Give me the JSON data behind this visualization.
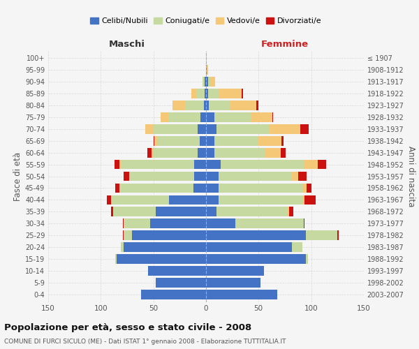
{
  "age_groups": [
    "0-4",
    "5-9",
    "10-14",
    "15-19",
    "20-24",
    "25-29",
    "30-34",
    "35-39",
    "40-44",
    "45-49",
    "50-54",
    "55-59",
    "60-64",
    "65-69",
    "70-74",
    "75-79",
    "80-84",
    "85-89",
    "90-94",
    "95-99",
    "100+"
  ],
  "birth_years": [
    "2003-2007",
    "1998-2002",
    "1993-1997",
    "1988-1992",
    "1983-1987",
    "1978-1982",
    "1973-1977",
    "1968-1972",
    "1963-1967",
    "1958-1962",
    "1953-1957",
    "1948-1952",
    "1943-1947",
    "1938-1942",
    "1933-1937",
    "1928-1932",
    "1923-1927",
    "1918-1922",
    "1913-1917",
    "1908-1912",
    "≤ 1907"
  ],
  "male": {
    "celibe": [
      62,
      48,
      55,
      85,
      78,
      70,
      53,
      48,
      35,
      12,
      11,
      11,
      8,
      6,
      8,
      5,
      2,
      1,
      1,
      0,
      0
    ],
    "coniugato": [
      0,
      0,
      0,
      1,
      3,
      8,
      25,
      40,
      55,
      70,
      62,
      70,
      42,
      40,
      42,
      30,
      18,
      8,
      2,
      0,
      0
    ],
    "vedovo": [
      0,
      0,
      0,
      0,
      0,
      0,
      0,
      0,
      0,
      0,
      0,
      1,
      2,
      3,
      8,
      8,
      12,
      5,
      0,
      0,
      0
    ],
    "divorziato": [
      0,
      0,
      0,
      0,
      0,
      1,
      1,
      2,
      4,
      4,
      5,
      5,
      4,
      1,
      0,
      0,
      0,
      0,
      0,
      0,
      0
    ]
  },
  "female": {
    "nubile": [
      68,
      52,
      55,
      95,
      82,
      95,
      28,
      10,
      12,
      12,
      12,
      14,
      8,
      8,
      10,
      8,
      3,
      2,
      2,
      1,
      0
    ],
    "coniugata": [
      0,
      0,
      0,
      2,
      10,
      30,
      65,
      68,
      80,
      80,
      70,
      80,
      48,
      42,
      50,
      35,
      20,
      10,
      2,
      0,
      0
    ],
    "vedova": [
      0,
      0,
      0,
      0,
      0,
      0,
      0,
      1,
      2,
      4,
      6,
      12,
      15,
      22,
      30,
      20,
      25,
      22,
      5,
      1,
      1
    ],
    "divorziata": [
      0,
      0,
      0,
      0,
      0,
      1,
      1,
      4,
      10,
      4,
      8,
      8,
      5,
      2,
      8,
      1,
      2,
      1,
      0,
      0,
      0
    ]
  },
  "colors": {
    "celibe_nubile": "#4472c4",
    "coniugato_coniugata": "#c5d9a0",
    "vedovo_vedova": "#f5c878",
    "divorziato_divorziata": "#cc1111"
  },
  "title": "Popolazione per età, sesso e stato civile - 2008",
  "subtitle": "COMUNE DI FURCI SICULO (ME) - Dati ISTAT 1° gennaio 2008 - Elaborazione TUTTITALIA.IT",
  "xlabel_left": "Maschi",
  "xlabel_right": "Femmine",
  "ylabel_left": "Fasce di età",
  "ylabel_right": "Anni di nascita",
  "xlim": 150,
  "bg_color": "#f5f5f5",
  "grid_color": "#cccccc"
}
